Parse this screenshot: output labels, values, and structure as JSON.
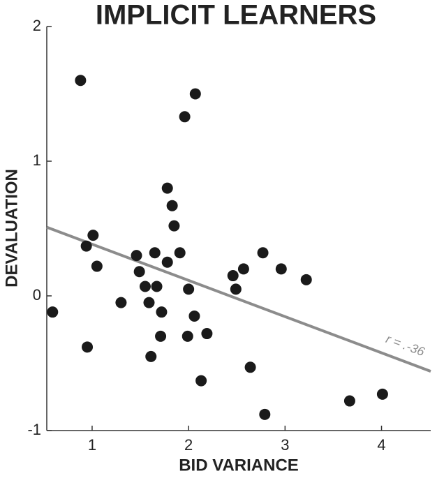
{
  "chart_data": {
    "type": "scatter",
    "title": "IMPLICIT LEARNERS",
    "x_label": "BID VARIANCE",
    "y_label": "DEVALUATION",
    "x": [
      0.59,
      0.88,
      0.94,
      1.01,
      1.05,
      0.95,
      1.3,
      1.46,
      1.49,
      1.55,
      1.59,
      1.61,
      1.65,
      1.67,
      1.72,
      1.71,
      1.78,
      1.78,
      1.83,
      1.85,
      1.91,
      1.96,
      2.07,
      2.0,
      1.99,
      2.06,
      2.19,
      2.13,
      2.46,
      2.49,
      2.57,
      2.64,
      2.77,
      2.79,
      2.96,
      3.22,
      3.67,
      4.01
    ],
    "y": [
      -0.12,
      1.6,
      0.37,
      0.45,
      0.22,
      -0.38,
      -0.05,
      0.3,
      0.18,
      0.07,
      -0.05,
      -0.45,
      0.32,
      0.07,
      -0.12,
      -0.3,
      0.25,
      0.8,
      0.67,
      0.52,
      0.32,
      1.33,
      1.5,
      0.05,
      -0.3,
      -0.15,
      -0.28,
      -0.63,
      0.15,
      0.05,
      0.2,
      -0.53,
      0.32,
      -0.88,
      0.2,
      0.12,
      -0.78,
      -0.73
    ],
    "color": "#1a1a1a",
    "fit": {
      "x": [
        0.53,
        4.51
      ],
      "y": [
        0.51,
        -0.56
      ],
      "color": "#8c8c8c",
      "label": "r = .-36"
    },
    "xlim": [
      0.53,
      4.51
    ],
    "ylim": [
      -1,
      2
    ],
    "xticks": [
      1,
      2,
      3,
      4
    ],
    "yticks": [
      -1,
      0,
      1,
      2
    ]
  }
}
